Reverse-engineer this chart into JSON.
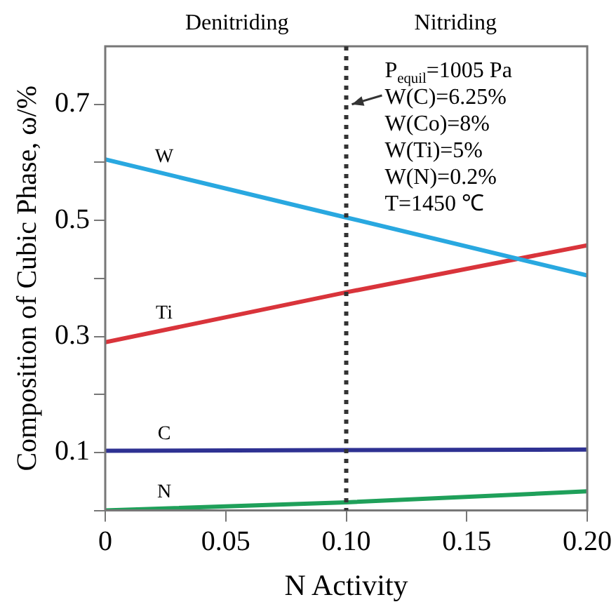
{
  "chart_data": {
    "type": "line",
    "xlabel": "N Activity",
    "ylabel": "Composition of Cubic Phase, ω/%",
    "xlim": [
      0,
      0.2
    ],
    "xticks": [
      0,
      0.05,
      {
        "value": 0.1,
        "label": "0.10"
      },
      0.15,
      {
        "value": 0.2,
        "label": "0.20"
      }
    ],
    "ylim": [
      0,
      0.8
    ],
    "yticks": [
      {
        "value": 0,
        "label": null
      },
      0.1,
      {
        "value": 0.2,
        "label": null
      },
      0.3,
      {
        "value": 0.4,
        "label": null
      },
      0.5,
      {
        "value": 0.6,
        "label": null
      },
      0.7
    ],
    "grid": false,
    "legend": false,
    "marker": "none",
    "line_style": "solid",
    "x": [
      0,
      0.1,
      0.2
    ],
    "series": [
      {
        "name": "W",
        "color": "#29a8e0",
        "values": [
          0.605,
          0.505,
          0.405
        ]
      },
      {
        "name": "Ti",
        "color": "#d9343b",
        "values": [
          0.29,
          0.376,
          0.457
        ]
      },
      {
        "name": "C",
        "color": "#2e3192",
        "values": [
          0.103,
          0.104,
          0.105
        ]
      },
      {
        "name": "N",
        "color": "#1fa05a",
        "values": [
          0,
          0.014,
          0.033
        ]
      }
    ],
    "ref_lines": [
      {
        "axis": "x",
        "value": 0.1,
        "color": "#333333",
        "line_style": "dotted"
      }
    ],
    "annotations": [
      "Denitriding",
      "Nitriding",
      "P$_{equil}$=1005 Pa",
      {
        "text": "W(C)=6.25%",
        "x": 0.1,
        "y": 0.7
      },
      "W(Co)=8%",
      "W(Ti)=5%",
      "W(N)=0.2%",
      "T=1450 ℃"
    ]
  }
}
